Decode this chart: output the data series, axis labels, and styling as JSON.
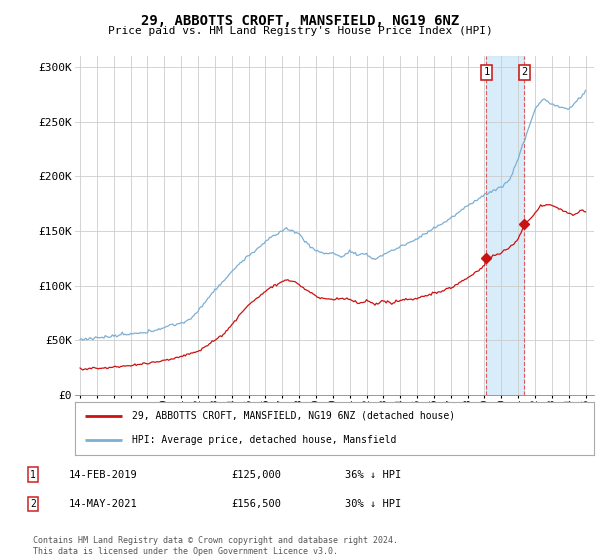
{
  "title": "29, ABBOTTS CROFT, MANSFIELD, NG19 6NZ",
  "subtitle": "Price paid vs. HM Land Registry's House Price Index (HPI)",
  "ylabel_ticks": [
    "£0",
    "£50K",
    "£100K",
    "£150K",
    "£200K",
    "£250K",
    "£300K"
  ],
  "ytick_values": [
    0,
    50000,
    100000,
    150000,
    200000,
    250000,
    300000
  ],
  "ylim": [
    0,
    310000
  ],
  "hpi_color": "#7bafd4",
  "price_color": "#cc1111",
  "marker1_x": 2019.12,
  "marker2_x": 2021.37,
  "marker1_price": 125000,
  "marker2_price": 156500,
  "shade_color": "#d0e8f8",
  "legend_label1": "29, ABBOTTS CROFT, MANSFIELD, NG19 6NZ (detached house)",
  "legend_label2": "HPI: Average price, detached house, Mansfield",
  "footer": "Contains HM Land Registry data © Crown copyright and database right 2024.\nThis data is licensed under the Open Government Licence v3.0.",
  "background_color": "#ffffff",
  "grid_color": "#cccccc"
}
